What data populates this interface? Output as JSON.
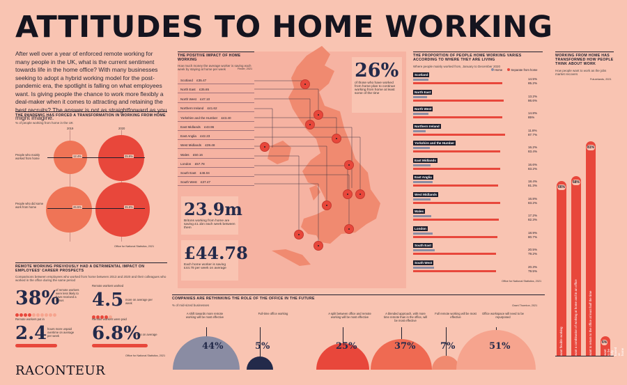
{
  "title": "ATTITUDES TO HOME WORKING",
  "intro": "After well over a year of enforced remote working for many people in the UK, what is the current sentiment towards life in the home office? With many businesses seeking to adopt a hybrid working model for the post-pandemic era, the spotlight is falling on what employees want. Is giving people the chance to work more flexibly a deal-maker when it comes to attracting and retaining the best recruits? The answer is not as straightforward as you might imagine.",
  "transformation": {
    "header": "THE PANDEMIC HAS FORCED A TRANSFORMATION IN WORKING FROM HOME",
    "subtitle": "% of people working from home in the UK",
    "years": [
      "2019",
      "2020"
    ],
    "rows": [
      {
        "label": "People who mainly worked from home",
        "v2019": "12.4%",
        "v2020": "25.9%"
      },
      {
        "label": "People who did some work from home",
        "v2019": "26.5%",
        "v2020": "35.9%"
      }
    ],
    "source": "Office for National Statistics, 2021"
  },
  "career": {
    "header": "REMOTE WORKING PREVIOUSLY HAD A DETRIMENTAL IMPACT ON EMPLOYEES' CAREER PROSPECTS",
    "subtitle": "Comparisons between employees who worked from home between 2013 and 2020 and their colleagues who worked in the office during the same period",
    "stat1_value": "38%",
    "stat1_text": "of remote workers were less likely to have received a bonus",
    "stat2_label": "Remote workers worked",
    "stat2_value": "4.5",
    "stat2_text": "more on average per week",
    "stat3_label": "Remote workers put in",
    "stat3_value": "2.4",
    "stat3_text": "hours more unpaid overtime on average per week",
    "stat4_label": "Remote workers were paid",
    "stat4_value": "6.8%",
    "stat4_text": "less on average",
    "source": "Office for National Statistics, 2021",
    "logo": "RACONTEUR"
  },
  "positive": {
    "header": "THE POSITIVE IMPACT OF HOME WORKING",
    "subtitle": "How much money the average worker is saving each week by staying at home per week",
    "source": "Finder, 2021",
    "regions": [
      {
        "name": "Scotland",
        "value": "£35.47"
      },
      {
        "name": "North East",
        "value": "£35.65"
      },
      {
        "name": "North West",
        "value": "£47.10"
      },
      {
        "name": "Northern Ireland",
        "value": "£41.62"
      },
      {
        "name": "Yorkshire and the Humber",
        "value": "£43.40"
      },
      {
        "name": "East Midlands",
        "value": "£43.96"
      },
      {
        "name": "East Anglia",
        "value": "£42.23"
      },
      {
        "name": "West Midlands",
        "value": "£39.48"
      },
      {
        "name": "Wales",
        "value": "£50.16"
      },
      {
        "name": "London",
        "value": "£57.78"
      },
      {
        "name": "South East",
        "value": "£46.04"
      },
      {
        "name": "South West",
        "value": "£37.47"
      }
    ],
    "pct_value": "26%",
    "pct_text": "of those who have worked from home plan to continue working from home at least some of the time",
    "millions_value": "23.9m",
    "millions_text": "Britons working from home are saving £1.1bn each week between them",
    "pounds_value": "£44.78",
    "pounds_text": "Each home worker is saving £44.78 per week on average"
  },
  "proportion": {
    "header": "THE PROPORTION OF PEOPLE HOME WORKING VARIES ACCORDING TO WHERE THEY ARE LIVING",
    "subtitle": "Where people mainly worked from, January to December 2020",
    "legend_home": "Home",
    "legend_sep": "Separate from home",
    "source": "Office for National Statistics, 2021",
    "rows": [
      {
        "name": "Scotland",
        "home": "14.5%",
        "sep": "85.2%"
      },
      {
        "name": "North East",
        "home": "13.2%",
        "sep": "86.6%"
      },
      {
        "name": "North West",
        "home": "14.8%",
        "sep": "85%"
      },
      {
        "name": "Northern Ireland",
        "home": "11.8%",
        "sep": "87.7%"
      },
      {
        "name": "Yorkshire and the Humber",
        "home": "16.2%",
        "sep": "83.4%"
      },
      {
        "name": "East Midlands",
        "home": "16.6%",
        "sep": "83.2%"
      },
      {
        "name": "East Anglia",
        "home": "18.4%",
        "sep": "81.3%"
      },
      {
        "name": "West Midlands",
        "home": "16.8%",
        "sep": "83.2%"
      },
      {
        "name": "Wales",
        "home": "17.2%",
        "sep": "82.3%"
      },
      {
        "name": "London",
        "home": "18.9%",
        "sep": "80.7%"
      },
      {
        "name": "South East",
        "home": "20.5%",
        "sep": "79.2%"
      },
      {
        "name": "South West",
        "home": "20.3%",
        "sep": "79.5%"
      }
    ]
  },
  "transformed": {
    "header": "WORKING FROM HOME HAS TRANSFORMED HOW PEOPLE THINK ABOUT WORK",
    "subtitle": "How people want to work as the jobs market recovers",
    "source": "Futurelands, 2021",
    "bars": [
      {
        "value": "66%",
        "label": "want flexible working"
      },
      {
        "value": "68%",
        "label": "want a combination of working at home and in an office"
      },
      {
        "value": "81%",
        "label": "want to return to the office at least half the time"
      },
      {
        "value": "6%",
        "label": "want to be fully based at home"
      }
    ]
  },
  "office": {
    "header": "COMPANIES ARE RETHINKING THE ROLE OF THE OFFICE IN THE FUTURE",
    "subtitle": "% of mid-sized businesses",
    "source": "Grant Thornton, 2021",
    "items": [
      {
        "label": "A shift towards more remote working will be most effective",
        "value": "44%"
      },
      {
        "label": "Full-time office working",
        "value": "5%"
      },
      {
        "label": "A split between office and remote working will be most effective",
        "value": "25%"
      },
      {
        "label": "A blended approach, with more time remote than in the office, will be most effective",
        "value": "37%"
      },
      {
        "label": "Full remote working will be most effective",
        "value": "7%"
      },
      {
        "label": "Office workspace will need to be repurposed",
        "value": "51%"
      }
    ]
  }
}
